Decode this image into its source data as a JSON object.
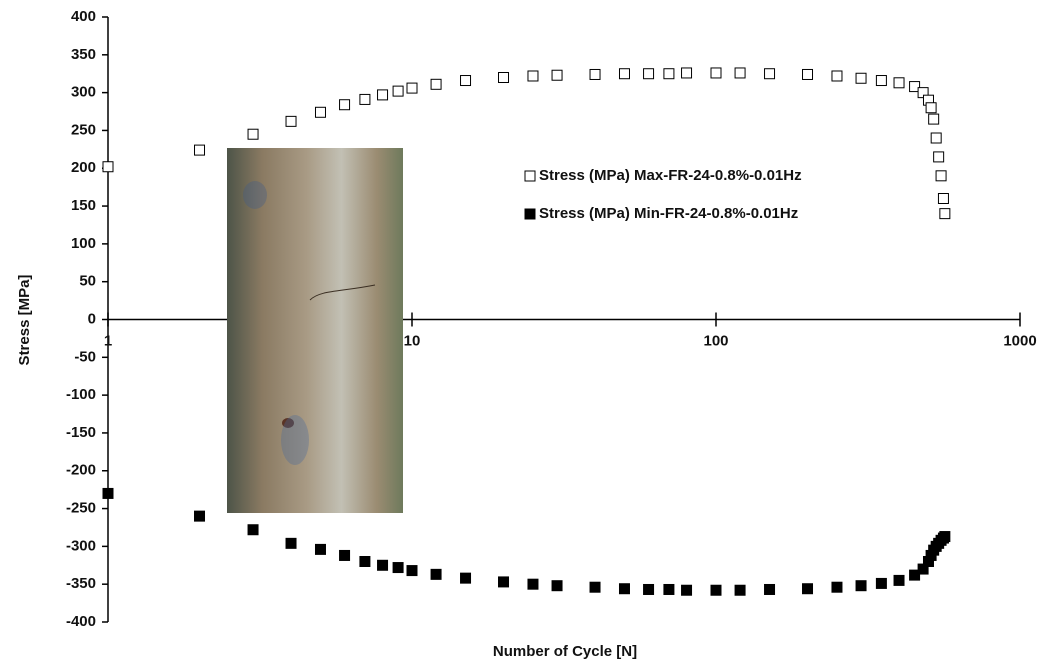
{
  "chart_data": {
    "type": "scatter",
    "x_label": "Number of Cycle [N]",
    "y_label": "Stress [MPa]",
    "x_log": true,
    "xlim": [
      1,
      1000
    ],
    "xticks": [
      1,
      10,
      100,
      1000
    ],
    "ylim": [
      -400,
      400
    ],
    "yticks": [
      -400,
      -350,
      -300,
      -250,
      -200,
      -150,
      -100,
      -50,
      0,
      50,
      100,
      150,
      200,
      250,
      300,
      350,
      400
    ],
    "legend_position": "upper center",
    "x": [
      1,
      2,
      3,
      4,
      5,
      6,
      7,
      8,
      9,
      10,
      12,
      15,
      20,
      25,
      30,
      40,
      50,
      60,
      70,
      80,
      100,
      120,
      150,
      200,
      250,
      300,
      350,
      400,
      450,
      480,
      500,
      510,
      520,
      530,
      540,
      550,
      560,
      566
    ],
    "series": [
      {
        "name": "Stress (MPa) Max-FR-24-0.8%-0.01Hz",
        "color": "#000000",
        "marker": "open",
        "values": [
          202,
          224,
          245,
          262,
          274,
          284,
          291,
          297,
          302,
          306,
          311,
          316,
          320,
          322,
          323,
          324,
          325,
          325,
          325,
          326,
          326,
          326,
          325,
          324,
          322,
          319,
          316,
          313,
          308,
          300,
          290,
          280,
          265,
          240,
          215,
          190,
          160,
          140
        ]
      },
      {
        "name": "Stress (MPa) Min-FR-24-0.8%-0.01Hz",
        "color": "#000000",
        "marker": "filled",
        "values": [
          -230,
          -260,
          -278,
          -296,
          -304,
          -312,
          -320,
          -325,
          -328,
          -332,
          -337,
          -342,
          -347,
          -350,
          -352,
          -354,
          -356,
          -357,
          -357,
          -358,
          -358,
          -358,
          -357,
          -356,
          -354,
          -352,
          -349,
          -345,
          -338,
          -330,
          -320,
          -312,
          -305,
          -300,
          -296,
          -292,
          -289,
          -287
        ]
      }
    ]
  }
}
